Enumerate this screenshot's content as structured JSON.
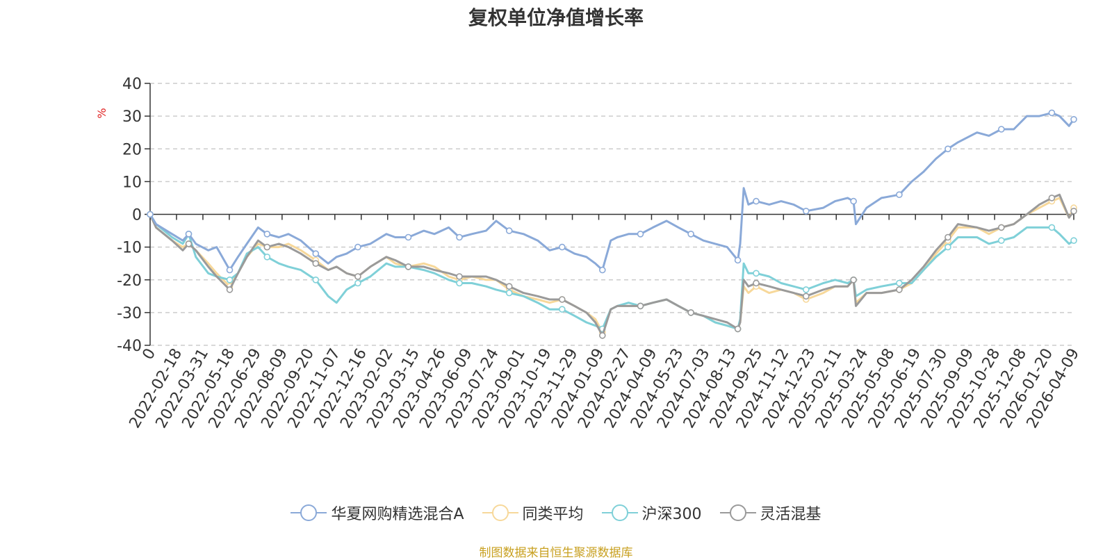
{
  "chart_data": {
    "type": "line",
    "title": "复权单位净值增长率",
    "ylabel": "%",
    "ylim": [
      -40,
      40
    ],
    "yticks": [
      -40,
      -30,
      -20,
      -10,
      0,
      10,
      20,
      30,
      40
    ],
    "x_tick_labels": [
      "0",
      "2022-02-18",
      "2022-03-31",
      "2022-05-18",
      "2022-06-29",
      "2022-08-09",
      "2022-09-20",
      "2022-11-07",
      "2022-12-16",
      "2023-02-02",
      "2023-03-15",
      "2023-04-26",
      "2023-06-09",
      "2023-07-24",
      "2023-09-01",
      "2023-10-19",
      "2023-11-29",
      "2024-01-09",
      "2024-02-27",
      "2024-04-09",
      "2024-05-23",
      "2024-07-03",
      "2024-08-13",
      "2024-09-25",
      "2024-11-12",
      "2024-12-23",
      "2025-02-11",
      "2025-03-24",
      "2025-05-08",
      "2025-06-19",
      "2025-07-30",
      "2025-09-09",
      "2025-10-28",
      "2025-12-08",
      "2026-01-20",
      "2026-04-09"
    ],
    "grid": "horizontal-dashed",
    "legend_position": "bottom",
    "x": [
      "2022-01-04",
      "2022-01-14",
      "2022-02-10",
      "2022-02-28",
      "2022-03-10",
      "2022-03-22",
      "2022-04-12",
      "2022-04-26",
      "2022-05-18",
      "2022-06-01",
      "2022-06-16",
      "2022-07-05",
      "2022-07-20",
      "2022-08-09",
      "2022-08-25",
      "2022-09-15",
      "2022-10-10",
      "2022-10-31",
      "2022-11-14",
      "2022-12-01",
      "2022-12-20",
      "2023-01-10",
      "2023-02-06",
      "2023-02-21",
      "2023-03-15",
      "2023-04-10",
      "2023-04-28",
      "2023-05-22",
      "2023-06-09",
      "2023-06-30",
      "2023-07-24",
      "2023-08-10",
      "2023-09-01",
      "2023-09-25",
      "2023-10-19",
      "2023-11-08",
      "2023-11-29",
      "2023-12-20",
      "2024-01-09",
      "2024-01-24",
      "2024-02-05",
      "2024-02-19",
      "2024-03-01",
      "2024-03-20",
      "2024-04-09",
      "2024-04-30",
      "2024-05-23",
      "2024-06-12",
      "2024-07-03",
      "2024-07-24",
      "2024-08-13",
      "2024-09-02",
      "2024-09-20",
      "2024-09-24",
      "2024-09-30",
      "2024-10-08",
      "2024-10-21",
      "2024-11-12",
      "2024-12-02",
      "2024-12-23",
      "2025-01-13",
      "2025-02-11",
      "2025-03-03",
      "2025-03-24",
      "2025-04-03",
      "2025-04-07",
      "2025-04-25",
      "2025-05-20",
      "2025-06-19",
      "2025-07-10",
      "2025-07-30",
      "2025-08-20",
      "2025-09-09",
      "2025-09-26",
      "2025-10-28",
      "2025-11-17",
      "2025-12-08",
      "2025-12-29",
      "2026-01-20",
      "2026-02-10",
      "2026-03-03",
      "2026-03-16",
      "2026-04-01",
      "2026-04-09"
    ],
    "series": [
      {
        "name": "华夏网购精选混合A",
        "color": "#8aa9d8",
        "values": [
          0,
          -3,
          -6,
          -8,
          -6,
          -9,
          -11,
          -10,
          -17,
          -13,
          -9,
          -4,
          -6,
          -7,
          -6,
          -8,
          -12,
          -15,
          -13,
          -12,
          -10,
          -9,
          -6,
          -7,
          -7,
          -5,
          -6,
          -4,
          -7,
          -6,
          -5,
          -2,
          -5,
          -6,
          -8,
          -11,
          -10,
          -12,
          -13,
          -15,
          -17,
          -8,
          -7,
          -6,
          -6,
          -4,
          -2,
          -4,
          -6,
          -8,
          -9,
          -10,
          -14,
          -9,
          8,
          3,
          4,
          3,
          4,
          3,
          1,
          2,
          4,
          5,
          4,
          -3,
          2,
          5,
          6,
          10,
          13,
          17,
          20,
          22,
          25,
          24,
          26,
          26,
          30,
          30,
          31,
          30,
          27,
          29
        ]
      },
      {
        "name": "同类平均",
        "color": "#f7d89a",
        "values": [
          0,
          -4,
          -8,
          -10,
          -9,
          -11,
          -15,
          -18,
          -22,
          -18,
          -13,
          -9,
          -10,
          -10,
          -9,
          -11,
          -14,
          -17,
          -16,
          -18,
          -19,
          -16,
          -13,
          -15,
          -16,
          -15,
          -16,
          -19,
          -20,
          -19,
          -20,
          -20,
          -23,
          -25,
          -26,
          -27,
          -26,
          -28,
          -30,
          -32,
          -36,
          -29,
          -28,
          -28,
          -28,
          -27,
          -26,
          -28,
          -30,
          -31,
          -33,
          -34,
          -35,
          -33,
          -22,
          -24,
          -22,
          -24,
          -23,
          -24,
          -26,
          -24,
          -22,
          -22,
          -20,
          -27,
          -24,
          -24,
          -23,
          -21,
          -17,
          -12,
          -8,
          -4,
          -4,
          -6,
          -4,
          -3,
          0,
          2,
          4,
          5,
          -1,
          2
        ]
      },
      {
        "name": "沪深300",
        "color": "#7fd0d8",
        "values": [
          0,
          -3,
          -7,
          -9,
          -6,
          -13,
          -18,
          -19,
          -20,
          -18,
          -12,
          -10,
          -13,
          -15,
          -16,
          -17,
          -20,
          -25,
          -27,
          -23,
          -21,
          -19,
          -15,
          -16,
          -16,
          -17,
          -18,
          -20,
          -21,
          -21,
          -22,
          -23,
          -24,
          -25,
          -27,
          -29,
          -29,
          -31,
          -33,
          -34,
          -35,
          -29,
          -28,
          -27,
          -28,
          -27,
          -26,
          -28,
          -30,
          -31,
          -33,
          -34,
          -35,
          -32,
          -15,
          -18,
          -18,
          -19,
          -21,
          -22,
          -23,
          -21,
          -20,
          -21,
          -20,
          -25,
          -23,
          -22,
          -21,
          -21,
          -17,
          -13,
          -10,
          -7,
          -7,
          -9,
          -8,
          -7,
          -4,
          -4,
          -4,
          -6,
          -9,
          -8
        ]
      },
      {
        "name": "灵活混基",
        "color": "#9a9a9a",
        "values": [
          0,
          -4,
          -8,
          -11,
          -9,
          -11,
          -16,
          -19,
          -23,
          -18,
          -13,
          -8,
          -10,
          -9,
          -10,
          -12,
          -15,
          -17,
          -16,
          -18,
          -19,
          -16,
          -13,
          -14,
          -16,
          -16,
          -17,
          -18,
          -19,
          -19,
          -19,
          -20,
          -22,
          -24,
          -25,
          -26,
          -26,
          -28,
          -30,
          -33,
          -37,
          -29,
          -28,
          -28,
          -28,
          -27,
          -26,
          -28,
          -30,
          -31,
          -32,
          -33,
          -35,
          -33,
          -20,
          -22,
          -21,
          -22,
          -23,
          -24,
          -25,
          -23,
          -22,
          -22,
          -20,
          -28,
          -24,
          -24,
          -23,
          -20,
          -16,
          -11,
          -7,
          -3,
          -4,
          -5,
          -4,
          -3,
          0,
          3,
          5,
          6,
          -1,
          1
        ]
      }
    ]
  },
  "source_note": "制图数据来自恒生聚源数据库"
}
